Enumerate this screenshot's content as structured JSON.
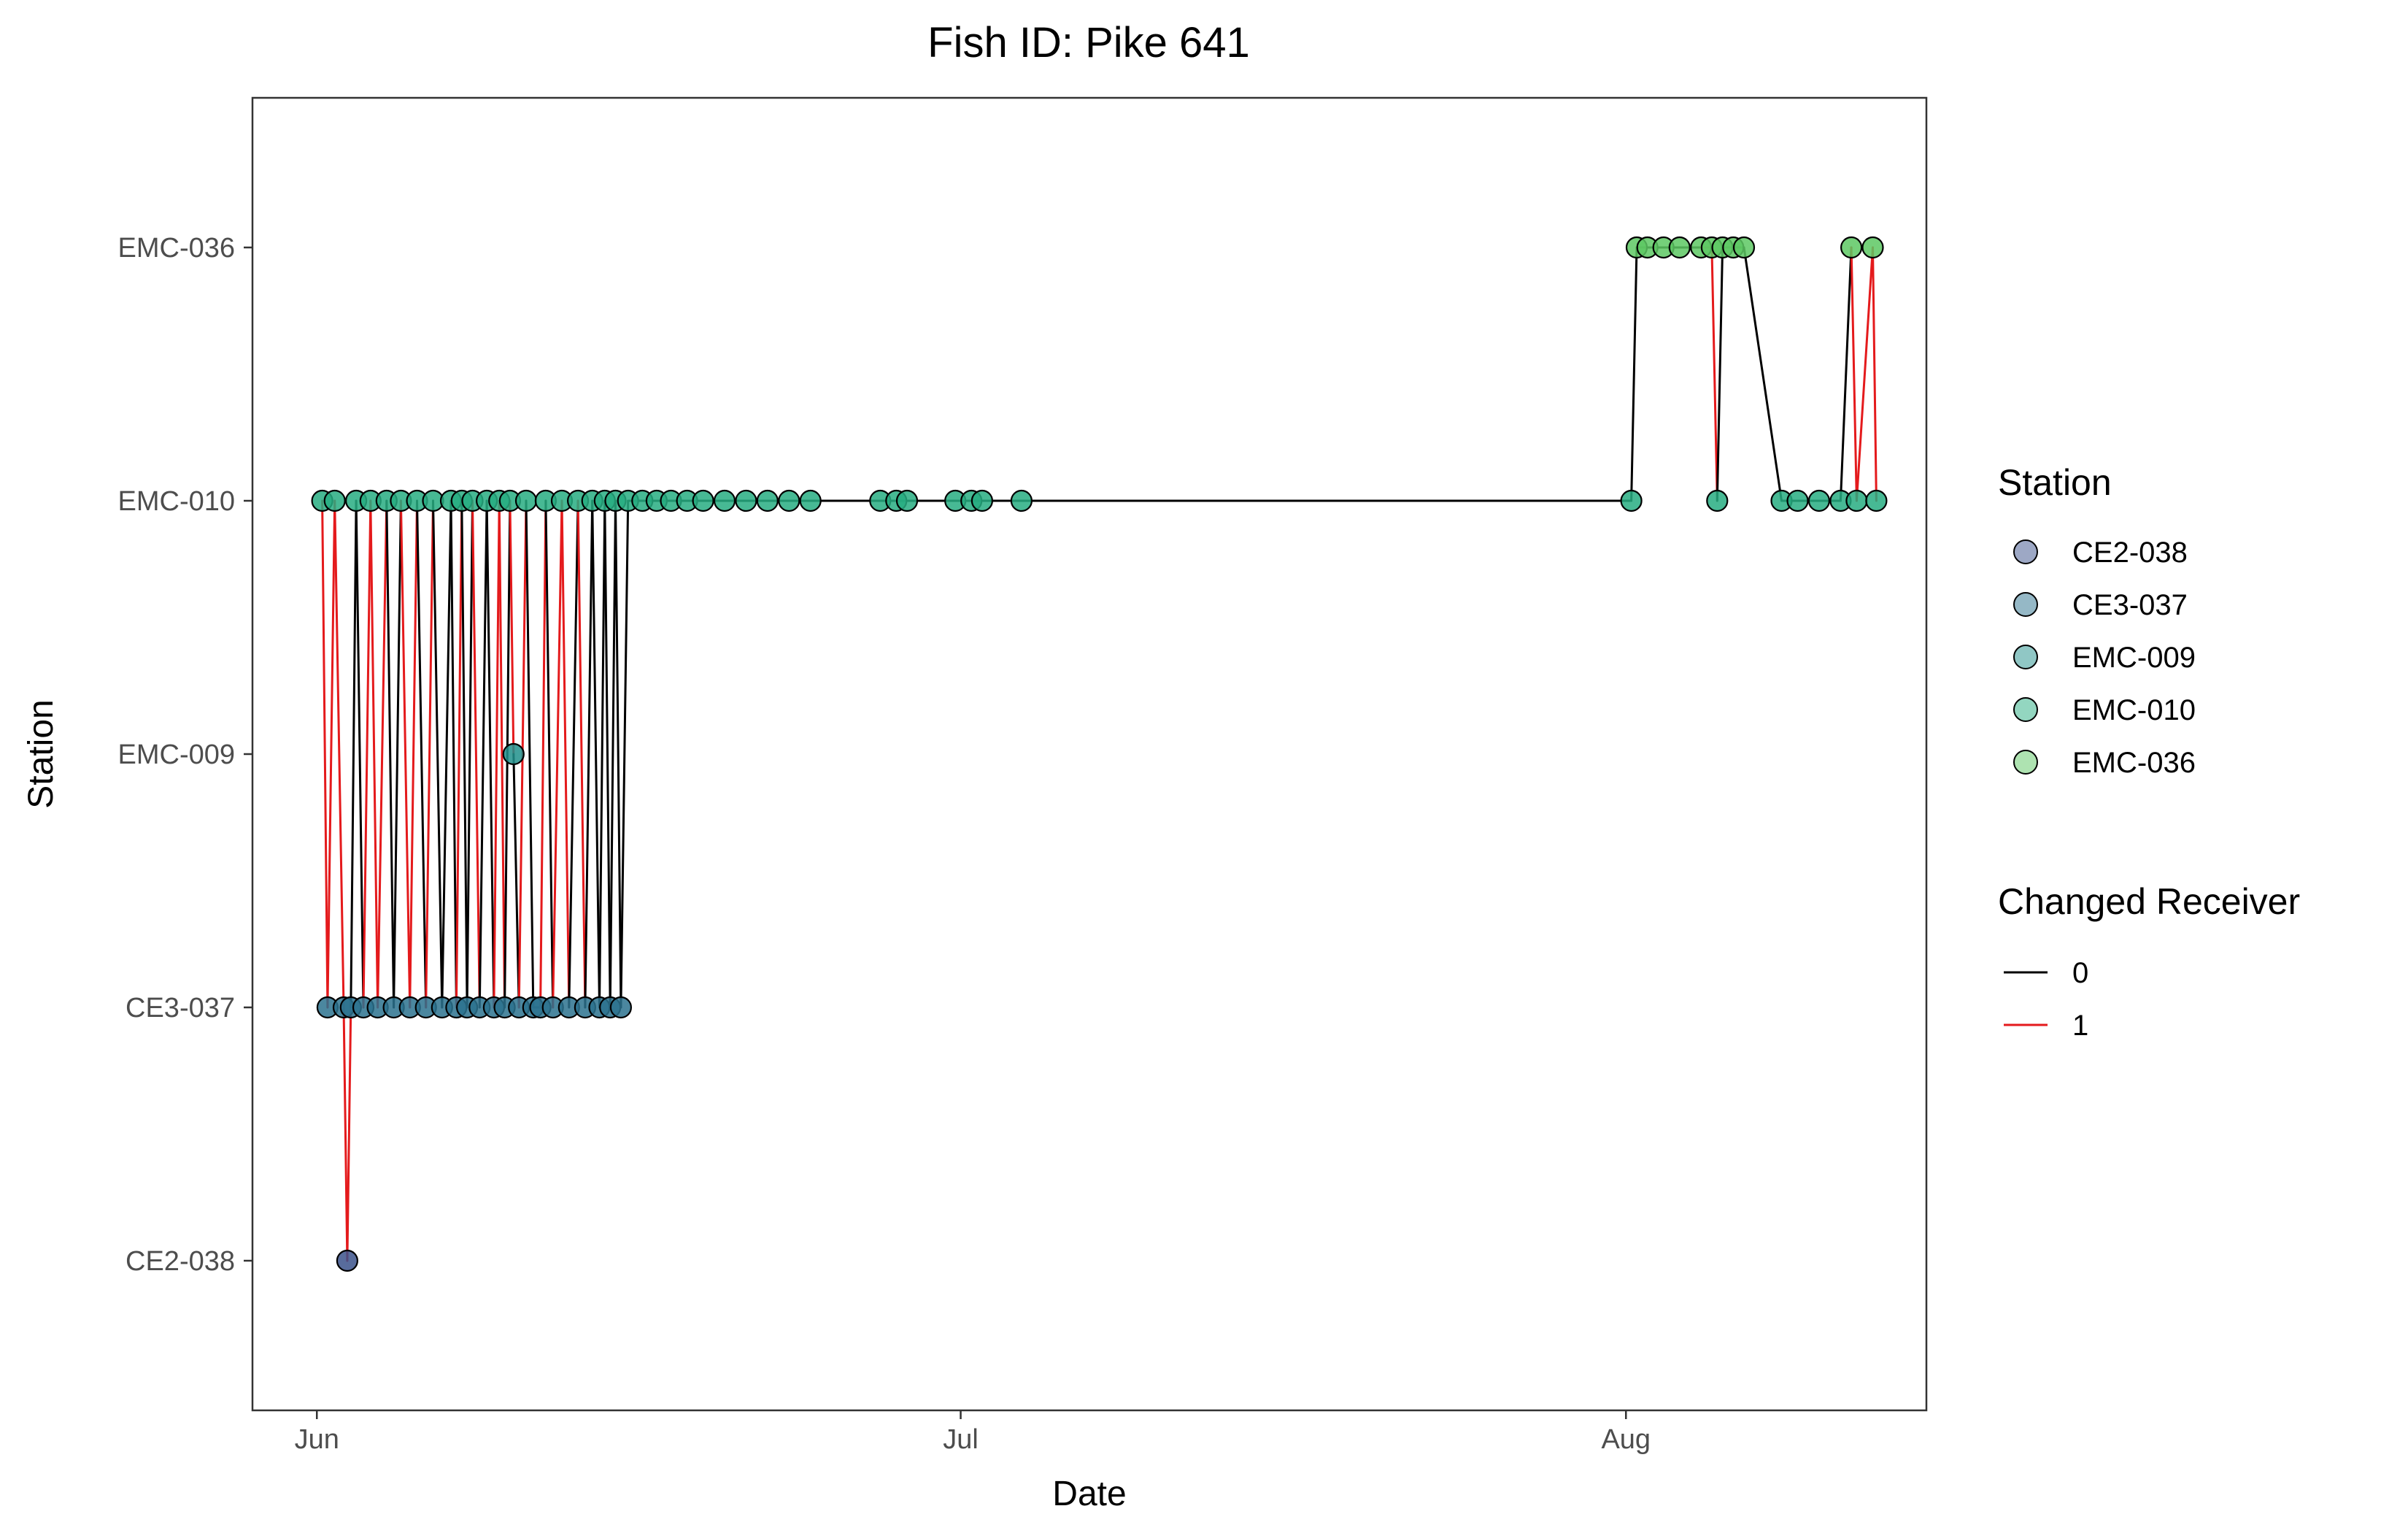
{
  "chart_data": {
    "type": "line",
    "title": "Fish ID: Pike 641",
    "xlabel": "Date",
    "ylabel": "Station",
    "x_axis": {
      "type": "date",
      "ticks": [
        {
          "date": "2021-06-01",
          "label": "Jun"
        },
        {
          "date": "2021-07-01",
          "label": "Jul"
        },
        {
          "date": "2021-08-01",
          "label": "Aug"
        }
      ],
      "range": [
        "2021-05-29",
        "2021-08-15"
      ]
    },
    "y_axis": {
      "type": "categorical",
      "categories": [
        "CE2-038",
        "CE3-037",
        "EMC-009",
        "EMC-010",
        "EMC-036"
      ]
    },
    "grid": false,
    "legend_position": "right",
    "station_colors": {
      "CE2-038": "#3b528b",
      "CE3-037": "#2c728e",
      "EMC-009": "#21908c",
      "EMC-010": "#27ad81",
      "EMC-036": "#5dc863"
    },
    "changed_receiver_colors": {
      "0": "#000000",
      "1": "#e41a1c"
    },
    "legends": [
      {
        "title": "Station",
        "type": "point",
        "items": [
          {
            "label": "CE2-038",
            "color": "#3b528b"
          },
          {
            "label": "CE3-037",
            "color": "#2c728e"
          },
          {
            "label": "EMC-009",
            "color": "#21908c"
          },
          {
            "label": "EMC-010",
            "color": "#27ad81"
          },
          {
            "label": "EMC-036",
            "color": "#5dc863"
          }
        ]
      },
      {
        "title": "Changed Receiver",
        "type": "line",
        "items": [
          {
            "label": "0",
            "color": "#000000"
          },
          {
            "label": "1",
            "color": "#e41a1c"
          }
        ]
      }
    ],
    "detections": [
      {
        "date": "2021-06-01 06:00",
        "station": "EMC-010",
        "changed_receiver": 0
      },
      {
        "date": "2021-06-01 12:00",
        "station": "CE3-037",
        "changed_receiver": 1
      },
      {
        "date": "2021-06-01 20:00",
        "station": "EMC-010",
        "changed_receiver": 1
      },
      {
        "date": "2021-06-02 06:00",
        "station": "CE3-037",
        "changed_receiver": 1
      },
      {
        "date": "2021-06-02 10:00",
        "station": "CE2-038",
        "changed_receiver": 1
      },
      {
        "date": "2021-06-02 14:00",
        "station": "CE3-037",
        "changed_receiver": 1
      },
      {
        "date": "2021-06-02 20:00",
        "station": "EMC-010",
        "changed_receiver": 0
      },
      {
        "date": "2021-06-03 04:00",
        "station": "CE3-037",
        "changed_receiver": 0
      },
      {
        "date": "2021-06-03 12:00",
        "station": "EMC-010",
        "changed_receiver": 1
      },
      {
        "date": "2021-06-03 20:00",
        "station": "CE3-037",
        "changed_receiver": 1
      },
      {
        "date": "2021-06-04 06:00",
        "station": "EMC-010",
        "changed_receiver": 1
      },
      {
        "date": "2021-06-04 14:00",
        "station": "CE3-037",
        "changed_receiver": 0
      },
      {
        "date": "2021-06-04 22:00",
        "station": "EMC-010",
        "changed_receiver": 0
      },
      {
        "date": "2021-06-05 08:00",
        "station": "CE3-037",
        "changed_receiver": 1
      },
      {
        "date": "2021-06-05 16:00",
        "station": "EMC-010",
        "changed_receiver": 1
      },
      {
        "date": "2021-06-06 02:00",
        "station": "CE3-037",
        "changed_receiver": 0
      },
      {
        "date": "2021-06-06 10:00",
        "station": "EMC-010",
        "changed_receiver": 1
      },
      {
        "date": "2021-06-06 20:00",
        "station": "CE3-037",
        "changed_receiver": 0
      },
      {
        "date": "2021-06-07 06:00",
        "station": "EMC-010",
        "changed_receiver": 0
      },
      {
        "date": "2021-06-07 12:00",
        "station": "CE3-037",
        "changed_receiver": 0
      },
      {
        "date": "2021-06-07 18:00",
        "station": "EMC-010",
        "changed_receiver": 1
      },
      {
        "date": "2021-06-08 00:00",
        "station": "CE3-037",
        "changed_receiver": 0
      },
      {
        "date": "2021-06-08 06:00",
        "station": "EMC-010",
        "changed_receiver": 0
      },
      {
        "date": "2021-06-08 14:00",
        "station": "CE3-037",
        "changed_receiver": 1
      },
      {
        "date": "2021-06-08 22:00",
        "station": "EMC-010",
        "changed_receiver": 0
      },
      {
        "date": "2021-06-09 06:00",
        "station": "CE3-037",
        "changed_receiver": 0
      },
      {
        "date": "2021-06-09 12:00",
        "station": "EMC-010",
        "changed_receiver": 1
      },
      {
        "date": "2021-06-09 18:00",
        "station": "CE3-037",
        "changed_receiver": 1
      },
      {
        "date": "2021-06-10 00:00",
        "station": "EMC-010",
        "changed_receiver": 0
      },
      {
        "date": "2021-06-10 04:00",
        "station": "EMC-009",
        "changed_receiver": 1
      },
      {
        "date": "2021-06-10 10:00",
        "station": "CE3-037",
        "changed_receiver": 0
      },
      {
        "date": "2021-06-10 18:00",
        "station": "EMC-010",
        "changed_receiver": 1
      },
      {
        "date": "2021-06-11 02:00",
        "station": "CE3-037",
        "changed_receiver": 0
      },
      {
        "date": "2021-06-11 10:00",
        "station": "CE3-037",
        "changed_receiver": 0
      },
      {
        "date": "2021-06-11 16:00",
        "station": "EMC-010",
        "changed_receiver": 1
      },
      {
        "date": "2021-06-12 00:00",
        "station": "CE3-037",
        "changed_receiver": 0
      },
      {
        "date": "2021-06-12 10:00",
        "station": "EMC-010",
        "changed_receiver": 1
      },
      {
        "date": "2021-06-12 18:00",
        "station": "CE3-037",
        "changed_receiver": 1
      },
      {
        "date": "2021-06-13 04:00",
        "station": "EMC-010",
        "changed_receiver": 0
      },
      {
        "date": "2021-06-13 12:00",
        "station": "CE3-037",
        "changed_receiver": 1
      },
      {
        "date": "2021-06-13 20:00",
        "station": "EMC-010",
        "changed_receiver": 0
      },
      {
        "date": "2021-06-14 04:00",
        "station": "CE3-037",
        "changed_receiver": 0
      },
      {
        "date": "2021-06-14 10:00",
        "station": "EMC-010",
        "changed_receiver": 0
      },
      {
        "date": "2021-06-14 16:00",
        "station": "CE3-037",
        "changed_receiver": 0
      },
      {
        "date": "2021-06-14 22:00",
        "station": "EMC-010",
        "changed_receiver": 0
      },
      {
        "date": "2021-06-15 04:00",
        "station": "CE3-037",
        "changed_receiver": 0
      },
      {
        "date": "2021-06-15 12:00",
        "station": "EMC-010",
        "changed_receiver": 0
      },
      {
        "date": "2021-06-16 04:00",
        "station": "EMC-010",
        "changed_receiver": 0
      },
      {
        "date": "2021-06-16 20:00",
        "station": "EMC-010",
        "changed_receiver": 0
      },
      {
        "date": "2021-06-17 12:00",
        "station": "EMC-010",
        "changed_receiver": 0
      },
      {
        "date": "2021-06-18 06:00",
        "station": "EMC-010",
        "changed_receiver": 0
      },
      {
        "date": "2021-06-19 00:00",
        "station": "EMC-010",
        "changed_receiver": 0
      },
      {
        "date": "2021-06-20 00:00",
        "station": "EMC-010",
        "changed_receiver": 0
      },
      {
        "date": "2021-06-21 00:00",
        "station": "EMC-010",
        "changed_receiver": 0
      },
      {
        "date": "2021-06-22 00:00",
        "station": "EMC-010",
        "changed_receiver": 0
      },
      {
        "date": "2021-06-23 00:00",
        "station": "EMC-010",
        "changed_receiver": 0
      },
      {
        "date": "2021-06-24 00:00",
        "station": "EMC-010",
        "changed_receiver": 0
      },
      {
        "date": "2021-06-27 06:00",
        "station": "EMC-010",
        "changed_receiver": 0
      },
      {
        "date": "2021-06-28 00:00",
        "station": "EMC-010",
        "changed_receiver": 0
      },
      {
        "date": "2021-06-28 12:00",
        "station": "EMC-010",
        "changed_receiver": 0
      },
      {
        "date": "2021-06-30 18:00",
        "station": "EMC-010",
        "changed_receiver": 0
      },
      {
        "date": "2021-07-01 12:00",
        "station": "EMC-010",
        "changed_receiver": 0
      },
      {
        "date": "2021-07-02 00:00",
        "station": "EMC-010",
        "changed_receiver": 0
      },
      {
        "date": "2021-07-03 20:00",
        "station": "EMC-010",
        "changed_receiver": 0
      },
      {
        "date": "2021-08-01 06:00",
        "station": "EMC-010",
        "changed_receiver": 0
      },
      {
        "date": "2021-08-01 12:00",
        "station": "EMC-036",
        "changed_receiver": 0
      },
      {
        "date": "2021-08-02 00:00",
        "station": "EMC-036",
        "changed_receiver": 0
      },
      {
        "date": "2021-08-02 18:00",
        "station": "EMC-036",
        "changed_receiver": 0
      },
      {
        "date": "2021-08-03 12:00",
        "station": "EMC-036",
        "changed_receiver": 0
      },
      {
        "date": "2021-08-04 12:00",
        "station": "EMC-036",
        "changed_receiver": 0
      },
      {
        "date": "2021-08-05 00:00",
        "station": "EMC-036",
        "changed_receiver": 1
      },
      {
        "date": "2021-08-05 06:00",
        "station": "EMC-010",
        "changed_receiver": 1
      },
      {
        "date": "2021-08-05 12:00",
        "station": "EMC-036",
        "changed_receiver": 0
      },
      {
        "date": "2021-08-06 00:00",
        "station": "EMC-036",
        "changed_receiver": 0
      },
      {
        "date": "2021-08-06 12:00",
        "station": "EMC-036",
        "changed_receiver": 0
      },
      {
        "date": "2021-08-08 06:00",
        "station": "EMC-010",
        "changed_receiver": 0
      },
      {
        "date": "2021-08-09 00:00",
        "station": "EMC-010",
        "changed_receiver": 0
      },
      {
        "date": "2021-08-10 00:00",
        "station": "EMC-010",
        "changed_receiver": 0
      },
      {
        "date": "2021-08-11 00:00",
        "station": "EMC-010",
        "changed_receiver": 0
      },
      {
        "date": "2021-08-11 12:00",
        "station": "EMC-036",
        "changed_receiver": 0
      },
      {
        "date": "2021-08-11 18:00",
        "station": "EMC-010",
        "changed_receiver": 1
      },
      {
        "date": "2021-08-12 12:00",
        "station": "EMC-036",
        "changed_receiver": 1
      },
      {
        "date": "2021-08-12 16:00",
        "station": "EMC-010",
        "changed_receiver": 1
      }
    ]
  }
}
